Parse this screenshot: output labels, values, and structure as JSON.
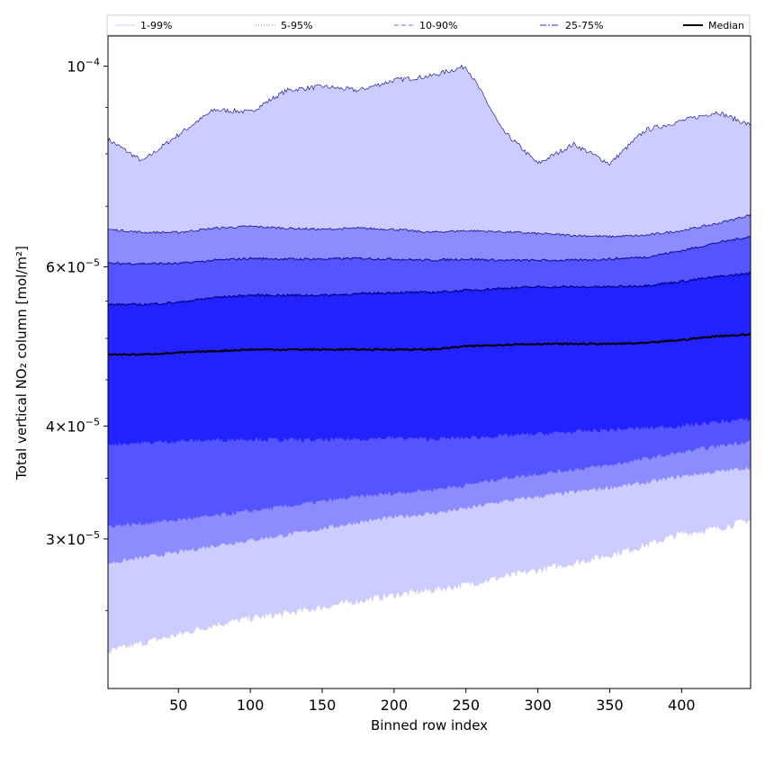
{
  "chart_data": {
    "type": "area",
    "title": "",
    "xlabel": "Binned row index",
    "ylabel": "Total vertical NO₂ column [mol/m²]",
    "yscale": "log",
    "xlim": [
      1,
      448
    ],
    "ylim": [
      2.05e-05,
      0.000108
    ],
    "x_ticks": [
      50,
      100,
      150,
      200,
      250,
      300,
      350,
      400
    ],
    "x_tick_labels": [
      "50",
      "100",
      "150",
      "200",
      "250",
      "300",
      "350",
      "400"
    ],
    "y_ticks": [
      {
        "value": 3e-05,
        "mantissa": "3",
        "exponent": "−5"
      },
      {
        "value": 4e-05,
        "mantissa": "4",
        "exponent": "−5"
      },
      {
        "value": 6e-05,
        "mantissa": "6",
        "exponent": "−5"
      },
      {
        "value": 0.0001,
        "mantissa": "",
        "exponent": "−4"
      }
    ],
    "legend_position": "top",
    "legend": [
      {
        "label": "1-99%",
        "color": "#d5d5f2",
        "style": "solid"
      },
      {
        "label": "5-95%",
        "color": "#9494c8",
        "style": "dotted"
      },
      {
        "label": "10-90%",
        "color": "#8a8aff",
        "style": "dashed"
      },
      {
        "label": "25-75%",
        "color": "#5555ee",
        "style": "dashdot"
      },
      {
        "label": "Median",
        "color": "#000000",
        "style": "solid"
      }
    ],
    "x": [
      1,
      25,
      50,
      75,
      100,
      125,
      150,
      175,
      200,
      225,
      250,
      275,
      300,
      325,
      350,
      375,
      400,
      425,
      448
    ],
    "series": [
      {
        "name": "1-99%",
        "fill": "#ccccff",
        "lower": [
          2.25e-05,
          2.3e-05,
          2.35e-05,
          2.41e-05,
          2.45e-05,
          2.48e-05,
          2.52e-05,
          2.56e-05,
          2.6e-05,
          2.63e-05,
          2.67e-05,
          2.72e-05,
          2.77e-05,
          2.82e-05,
          2.88e-05,
          2.95e-05,
          3.04e-05,
          3.08e-05,
          3.15e-05
        ],
        "upper": [
          8.3e-05,
          7.85e-05,
          8.4e-05,
          8.95e-05,
          8.9e-05,
          9.4e-05,
          9.5e-05,
          9.4e-05,
          9.65e-05,
          9.75e-05,
          0.0001,
          8.5e-05,
          7.8e-05,
          8.2e-05,
          7.8e-05,
          8.5e-05,
          8.7e-05,
          8.9e-05,
          8.6e-05
        ]
      },
      {
        "name": "5-95%",
        "fill": "#8c8cff",
        "lower": [
          2.82e-05,
          2.86e-05,
          2.9e-05,
          2.95e-05,
          2.99e-05,
          3.03e-05,
          3.08e-05,
          3.13e-05,
          3.17e-05,
          3.2e-05,
          3.24e-05,
          3.3e-05,
          3.34e-05,
          3.38e-05,
          3.42e-05,
          3.46e-05,
          3.52e-05,
          3.56e-05,
          3.6e-05
        ],
        "upper": [
          6.6e-05,
          6.55e-05,
          6.55e-05,
          6.62e-05,
          6.65e-05,
          6.62e-05,
          6.6e-05,
          6.62e-05,
          6.6e-05,
          6.55e-05,
          6.58e-05,
          6.56e-05,
          6.53e-05,
          6.5e-05,
          6.48e-05,
          6.5e-05,
          6.58e-05,
          6.7e-05,
          6.85e-05
        ]
      },
      {
        "name": "10-90%",
        "fill": "#5555ff",
        "lower": [
          3.1e-05,
          3.12e-05,
          3.15e-05,
          3.18e-05,
          3.22e-05,
          3.26e-05,
          3.3e-05,
          3.34e-05,
          3.37e-05,
          3.4e-05,
          3.44e-05,
          3.5e-05,
          3.54e-05,
          3.58e-05,
          3.62e-05,
          3.68e-05,
          3.74e-05,
          3.8e-05,
          3.85e-05
        ],
        "upper": [
          6.05e-05,
          6.05e-05,
          6.05e-05,
          6.1e-05,
          6.13e-05,
          6.12e-05,
          6.12e-05,
          6.13e-05,
          6.12e-05,
          6.1e-05,
          6.12e-05,
          6.1e-05,
          6.1e-05,
          6.1e-05,
          6.12e-05,
          6.15e-05,
          6.25e-05,
          6.38e-05,
          6.48e-05
        ]
      },
      {
        "name": "25-75%",
        "fill": "#2222ff",
        "lower": [
          3.82e-05,
          3.83e-05,
          3.85e-05,
          3.86e-05,
          3.87e-05,
          3.86e-05,
          3.86e-05,
          3.87e-05,
          3.88e-05,
          3.87e-05,
          3.88e-05,
          3.9e-05,
          3.92e-05,
          3.94e-05,
          3.96e-05,
          3.98e-05,
          4e-05,
          4.04e-05,
          4.07e-05
        ],
        "upper": [
          5.45e-05,
          5.45e-05,
          5.48e-05,
          5.55e-05,
          5.58e-05,
          5.58e-05,
          5.58e-05,
          5.6e-05,
          5.62e-05,
          5.62e-05,
          5.65e-05,
          5.68e-05,
          5.7e-05,
          5.7e-05,
          5.7e-05,
          5.72e-05,
          5.78e-05,
          5.85e-05,
          5.9e-05
        ]
      },
      {
        "name": "Median",
        "values": [
          4.8e-05,
          4.8e-05,
          4.82e-05,
          4.84e-05,
          4.86e-05,
          4.86e-05,
          4.86e-05,
          4.86e-05,
          4.86e-05,
          4.86e-05,
          4.9e-05,
          4.92e-05,
          4.93e-05,
          4.93e-05,
          4.93e-05,
          4.94e-05,
          4.98e-05,
          5.03e-05,
          5.05e-05
        ]
      }
    ]
  }
}
